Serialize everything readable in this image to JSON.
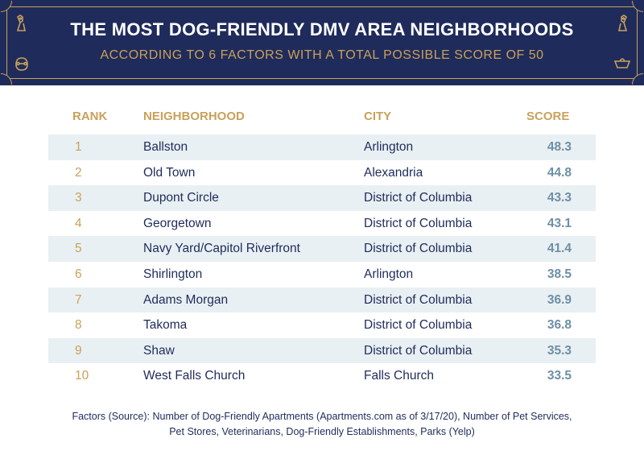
{
  "header": {
    "title": "THE MOST DOG-FRIENDLY DMV AREA NEIGHBORHOODS",
    "subtitle": "ACCORDING TO 6 FACTORS WITH A TOTAL POSSIBLE SCORE OF 50",
    "icons": [
      "dog-sitting-icon",
      "dog-sitting-icon",
      "dog-with-bone-icon",
      "dog-bowl-icon"
    ],
    "accent_color": "#c9a15a",
    "background_color": "#1f2b5b"
  },
  "table": {
    "columns": [
      "RANK",
      "NEIGHBORHOOD",
      "CITY",
      "SCORE"
    ],
    "rows": [
      {
        "rank": "1",
        "neighborhood": "Ballston",
        "city": "Arlington",
        "score": "48.3"
      },
      {
        "rank": "2",
        "neighborhood": "Old Town",
        "city": "Alexandria",
        "score": "44.8"
      },
      {
        "rank": "3",
        "neighborhood": "Dupont Circle",
        "city": "District of Columbia",
        "score": "43.3"
      },
      {
        "rank": "4",
        "neighborhood": "Georgetown",
        "city": "District of Columbia",
        "score": "43.1"
      },
      {
        "rank": "5",
        "neighborhood": "Navy Yard/Capitol Riverfront",
        "city": "District of Columbia",
        "score": "41.4"
      },
      {
        "rank": "6",
        "neighborhood": "Shirlington",
        "city": "Arlington",
        "score": "38.5"
      },
      {
        "rank": "7",
        "neighborhood": "Adams Morgan",
        "city": "District of Columbia",
        "score": "36.9"
      },
      {
        "rank": "8",
        "neighborhood": "Takoma",
        "city": "District of Columbia",
        "score": "36.8"
      },
      {
        "rank": "9",
        "neighborhood": "Shaw",
        "city": "District of Columbia",
        "score": "35.3"
      },
      {
        "rank": "10",
        "neighborhood": "West Falls Church",
        "city": "Falls Church",
        "score": "33.5"
      }
    ]
  },
  "footer": {
    "line1": "Factors (Source): Number of Dog-Friendly Apartments (Apartments.com as of 3/17/20), Number of Pet Services,",
    "line2": "Pet Stores, Veterinarians, Dog-Friendly Establishments, Parks (Yelp)"
  }
}
